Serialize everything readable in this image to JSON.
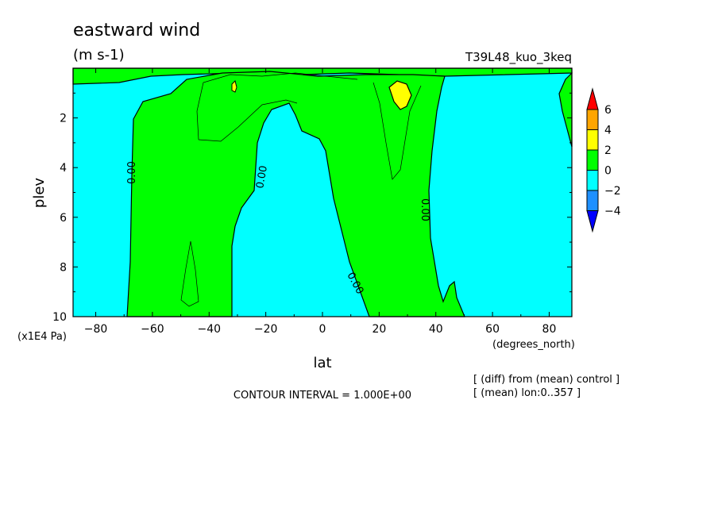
{
  "chart_data": {
    "type": "contour",
    "title": "eastward wind",
    "units": "(m s-1)",
    "run_label": "T39L48_kuo_3keq",
    "xlabel": "lat",
    "x_unit": "(degrees_north)",
    "ylabel": "plev",
    "y_unit": "(x1E4 Pa)",
    "xlim": [
      -88,
      88
    ],
    "ylim": [
      10,
      0
    ],
    "x_ticks": [
      "-80",
      "-60",
      "-40",
      "-20",
      "0",
      "20",
      "40",
      "60",
      "80"
    ],
    "y_ticks": [
      "2",
      "4",
      "6",
      "8",
      "10"
    ],
    "contour_interval": "CONTOUR INTERVAL = 1.000E+00",
    "contour_labels": [
      "0.00",
      "0.00",
      "0.00",
      "0.00"
    ],
    "colorbar": {
      "levels": [
        "6",
        "4",
        "2",
        "0",
        "-2",
        "-4"
      ],
      "colors": [
        "#ff0000",
        "#ffa500",
        "#ffff00",
        "#00ff00",
        "#00ffff",
        "#1e90ff",
        "#0000ff"
      ]
    },
    "notes": [
      "[ (diff) from (mean) control ]",
      "[ (mean) lon:0..357 ]"
    ],
    "fields": {
      "negative_color": "#00ffff",
      "positive_color": "#00ff00",
      "max_color": "#ffff00"
    }
  }
}
